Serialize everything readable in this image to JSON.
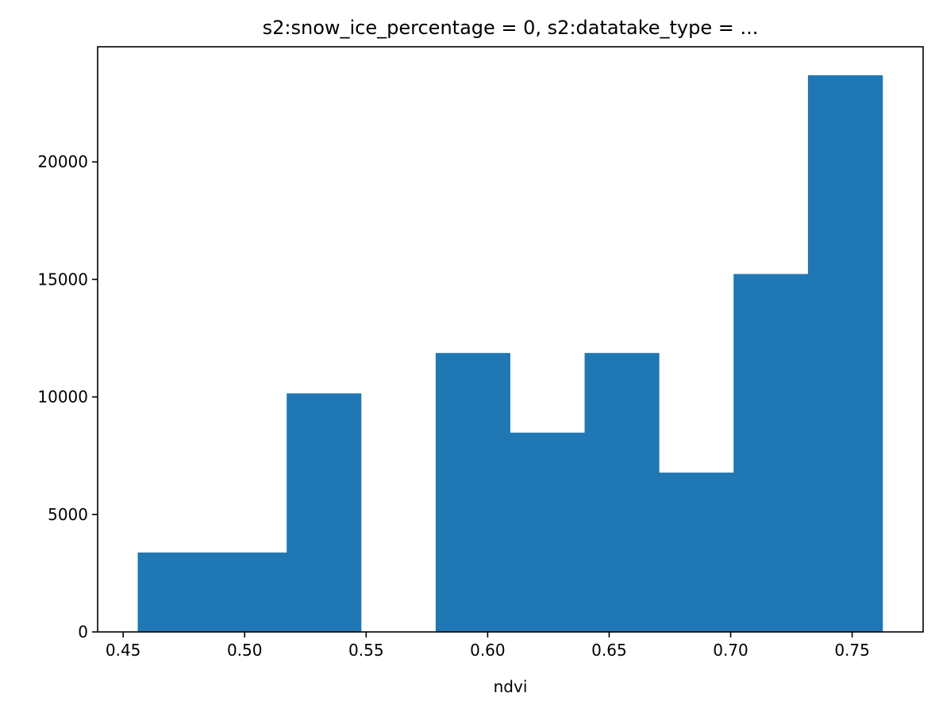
{
  "chart_data": {
    "type": "bar",
    "subtype": "histogram",
    "title": "s2:snow_ice_percentage = 0, s2:datatake_type = ...",
    "xlabel": "ndvi",
    "ylabel": "",
    "xlim": [
      0.4395,
      0.7792
    ],
    "ylim": [
      0,
      24900
    ],
    "xticks": [
      0.45,
      0.5,
      0.55,
      0.6,
      0.65,
      0.7,
      0.75
    ],
    "xtick_labels": [
      "0.45",
      "0.50",
      "0.55",
      "0.60",
      "0.65",
      "0.70",
      "0.75"
    ],
    "yticks": [
      0,
      5000,
      10000,
      15000,
      20000
    ],
    "ytick_labels": [
      "0",
      "5000",
      "10000",
      "15000",
      "20000"
    ],
    "bin_edges": [
      0.456,
      0.4866,
      0.5173,
      0.5479,
      0.5786,
      0.6092,
      0.6399,
      0.6705,
      0.7012,
      0.7318,
      0.7625
    ],
    "values": [
      3380,
      3380,
      10150,
      0,
      11870,
      8480,
      11870,
      6780,
      15230,
      23690
    ],
    "color": "#1f77b4",
    "grid": false,
    "legend": "none"
  }
}
